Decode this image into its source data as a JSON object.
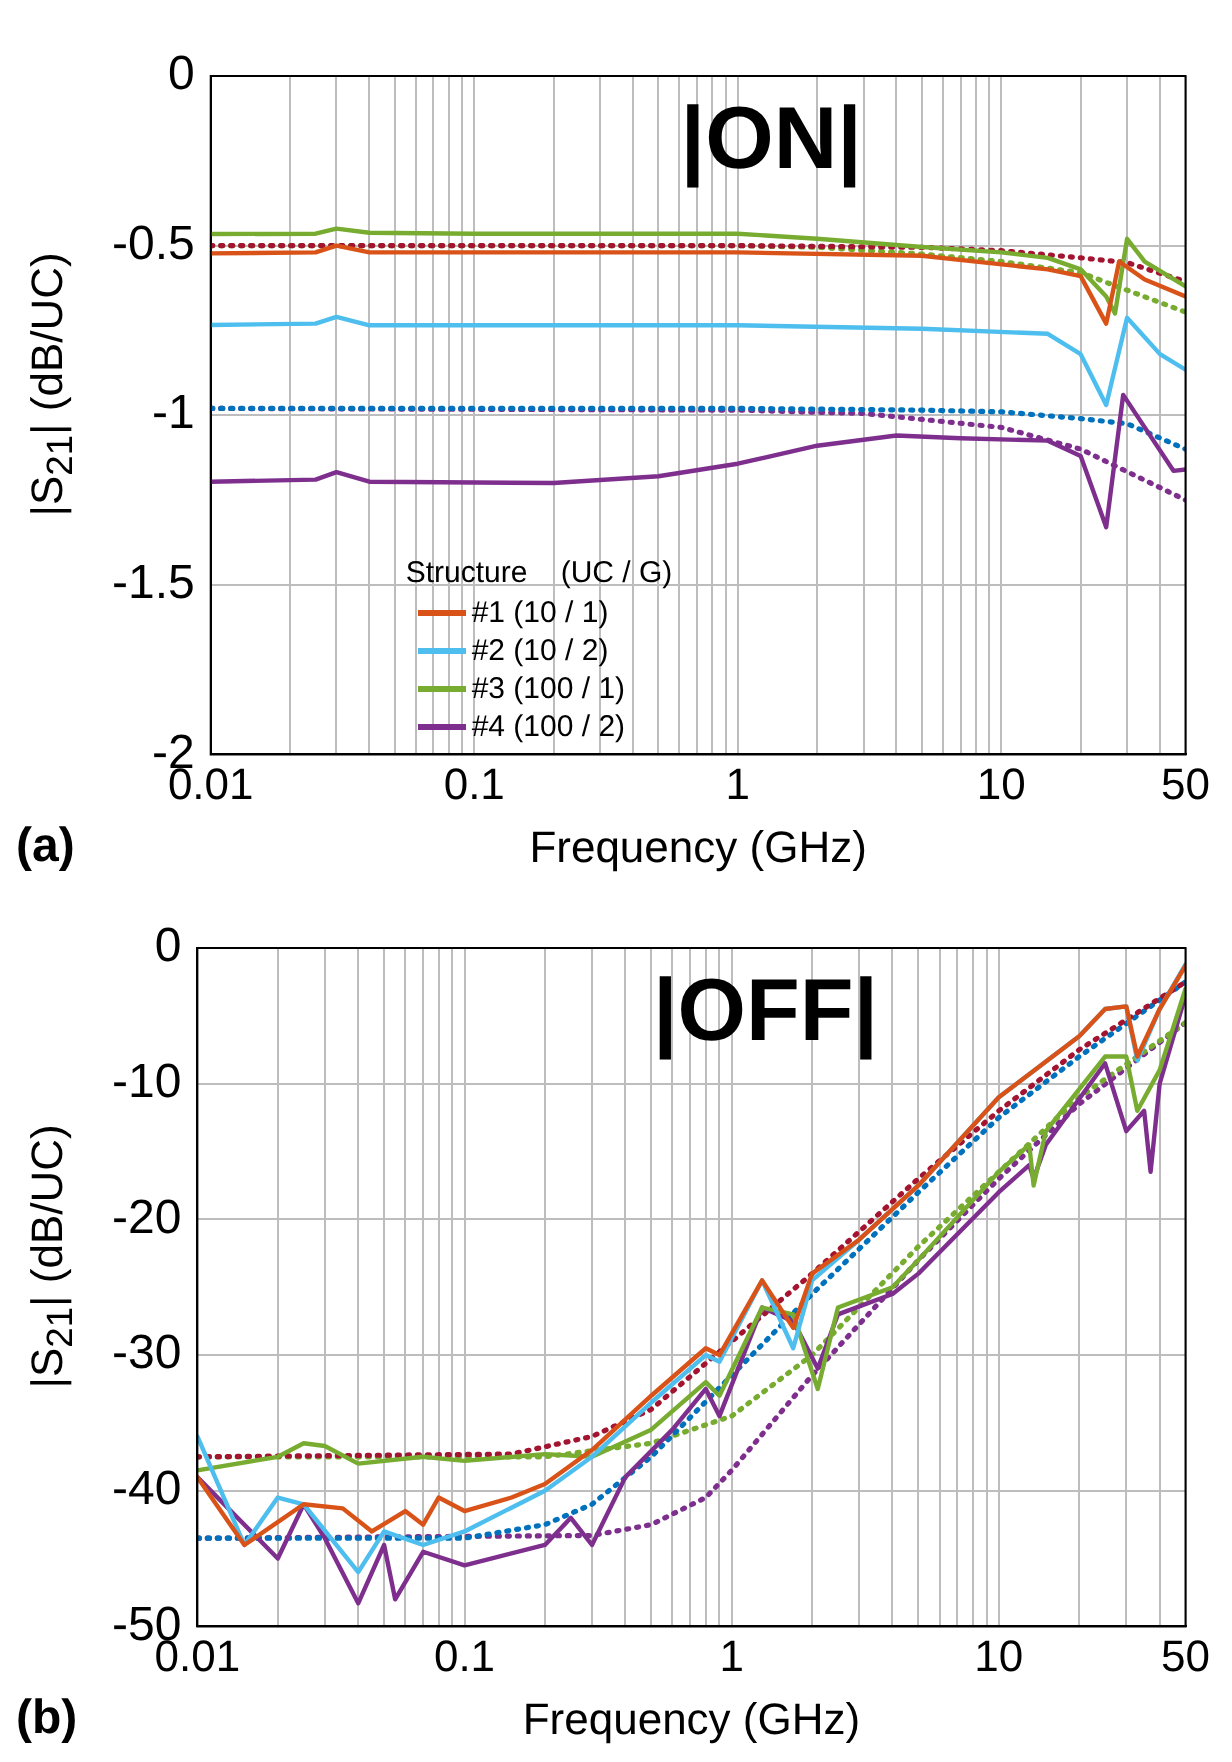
{
  "chart_data": [
    {
      "type": "line",
      "annotations": [
        "|ON|",
        "(a)"
      ],
      "xlabel": "Frequency (GHz)",
      "ylabel": "|S$_{21}$| (dB/UC)",
      "log": "x",
      "grid": true,
      "legend": "bottom left",
      "legend_title": "Structure    (UC / G)",
      "marker": "none",
      "xlim": [
        0.01,
        50
      ],
      "ylim": [
        -2,
        0
      ],
      "xticks": [
        0.01,
        {
          "value": 0.02,
          "label": null
        },
        {
          "value": 0.03,
          "label": null
        },
        {
          "value": 0.04,
          "label": null
        },
        {
          "value": 0.05,
          "label": null
        },
        {
          "value": 0.06,
          "label": null
        },
        {
          "value": 0.07,
          "label": null
        },
        {
          "value": 0.08,
          "label": null
        },
        {
          "value": 0.09,
          "label": null
        },
        0.1,
        {
          "value": 0.2,
          "label": null
        },
        {
          "value": 0.3,
          "label": null
        },
        {
          "value": 0.4,
          "label": null
        },
        {
          "value": 0.5,
          "label": null
        },
        {
          "value": 0.6,
          "label": null
        },
        {
          "value": 0.7,
          "label": null
        },
        {
          "value": 0.8,
          "label": null
        },
        {
          "value": 0.9,
          "label": null
        },
        1,
        {
          "value": 2,
          "label": null
        },
        {
          "value": 3,
          "label": null
        },
        {
          "value": 4,
          "label": null
        },
        {
          "value": 5,
          "label": null
        },
        {
          "value": 6,
          "label": null
        },
        {
          "value": 7,
          "label": null
        },
        {
          "value": 8,
          "label": null
        },
        {
          "value": 9,
          "label": null
        },
        10,
        {
          "value": 20,
          "label": null
        },
        {
          "value": 30,
          "label": null
        },
        {
          "value": 40,
          "label": null
        },
        50
      ],
      "yticks": [
        0,
        -0.5,
        -1,
        -1.5,
        -2
      ],
      "series": [
        {
          "name": "#1 (10 / 1)",
          "color": "#d95319",
          "line_style": "solid",
          "x": [
            0.01,
            0.025,
            0.03,
            0.04,
            0.1,
            1,
            5,
            15,
            20,
            25,
            28,
            35,
            50
          ],
          "values": [
            -0.523,
            -0.52,
            -0.5,
            -0.52,
            -0.52,
            -0.52,
            -0.53,
            -0.57,
            -0.59,
            -0.73,
            -0.547,
            -0.6,
            -0.65
          ]
        },
        {
          "name": "#2 (10 / 2)",
          "color": "#4dbeee",
          "line_style": "solid",
          "x": [
            0.01,
            0.025,
            0.03,
            0.04,
            0.1,
            1,
            5,
            15,
            20,
            25,
            30,
            40,
            50
          ],
          "values": [
            -0.734,
            -0.73,
            -0.71,
            -0.735,
            -0.735,
            -0.735,
            -0.745,
            -0.76,
            -0.82,
            -0.97,
            -0.713,
            -0.82,
            -0.866
          ]
        },
        {
          "name": "#3 (100 / 1)",
          "color": "#77ac30",
          "line_style": "solid",
          "x": [
            0.01,
            0.025,
            0.03,
            0.04,
            0.1,
            1,
            2,
            5,
            10,
            15,
            20,
            25,
            27,
            30,
            35,
            50
          ],
          "values": [
            -0.466,
            -0.465,
            -0.45,
            -0.462,
            -0.465,
            -0.465,
            -0.48,
            -0.504,
            -0.52,
            -0.536,
            -0.57,
            -0.65,
            -0.7,
            -0.48,
            -0.547,
            -0.62
          ]
        },
        {
          "name": "#4 (100 / 2)",
          "color": "#7e2f8e",
          "line_style": "solid",
          "x": [
            0.01,
            0.025,
            0.03,
            0.04,
            0.2,
            0.5,
            1,
            2,
            4,
            7,
            15,
            20,
            25,
            29,
            35,
            45,
            50
          ],
          "values": [
            -1.196,
            -1.19,
            -1.168,
            -1.196,
            -1.2,
            -1.18,
            -1.143,
            -1.09,
            -1.06,
            -1.068,
            -1.075,
            -1.12,
            -1.33,
            -0.94,
            -1.036,
            -1.164,
            -1.16
          ]
        },
        {
          "color": "#a2142f",
          "line_style": "dotted",
          "x": [
            0.01,
            1,
            5,
            10,
            20,
            30,
            50
          ],
          "values": [
            -0.5,
            -0.5,
            -0.505,
            -0.515,
            -0.536,
            -0.55,
            -0.606
          ]
        },
        {
          "color": "#0072bd",
          "line_style": "dotted",
          "x": [
            0.01,
            1,
            5,
            10,
            20,
            30,
            50
          ],
          "values": [
            -0.98,
            -0.98,
            -0.985,
            -0.99,
            -1.01,
            -1.025,
            -1.1
          ]
        },
        {
          "color": "#77ac30",
          "line_style": "dotted",
          "x": [
            0.01,
            1,
            2,
            5,
            10,
            20,
            50
          ],
          "values": [
            -0.5,
            -0.5,
            -0.505,
            -0.525,
            -0.547,
            -0.58,
            -0.696
          ]
        },
        {
          "color": "#7e2f8e",
          "line_style": "dotted",
          "x": [
            0.01,
            1,
            3,
            10,
            20,
            50
          ],
          "values": [
            -0.98,
            -0.985,
            -0.995,
            -1.036,
            -1.1,
            -1.25
          ]
        }
      ]
    },
    {
      "type": "line",
      "annotations": [
        "|OFF|",
        "(b)"
      ],
      "xlabel": "Frequency (GHz)",
      "ylabel": "|S$_{21}$| (dB/UC)",
      "log": "x",
      "grid": true,
      "marker": "none",
      "xlim": [
        0.01,
        50
      ],
      "ylim": [
        -50,
        0
      ],
      "xticks": [
        0.01,
        {
          "value": 0.02,
          "label": null
        },
        {
          "value": 0.03,
          "label": null
        },
        {
          "value": 0.04,
          "label": null
        },
        {
          "value": 0.05,
          "label": null
        },
        {
          "value": 0.06,
          "label": null
        },
        {
          "value": 0.07,
          "label": null
        },
        {
          "value": 0.08,
          "label": null
        },
        {
          "value": 0.09,
          "label": null
        },
        0.1,
        {
          "value": 0.2,
          "label": null
        },
        {
          "value": 0.3,
          "label": null
        },
        {
          "value": 0.4,
          "label": null
        },
        {
          "value": 0.5,
          "label": null
        },
        {
          "value": 0.6,
          "label": null
        },
        {
          "value": 0.7,
          "label": null
        },
        {
          "value": 0.8,
          "label": null
        },
        {
          "value": 0.9,
          "label": null
        },
        1,
        {
          "value": 2,
          "label": null
        },
        {
          "value": 3,
          "label": null
        },
        {
          "value": 4,
          "label": null
        },
        {
          "value": 5,
          "label": null
        },
        {
          "value": 6,
          "label": null
        },
        {
          "value": 7,
          "label": null
        },
        {
          "value": 8,
          "label": null
        },
        {
          "value": 9,
          "label": null
        },
        10,
        {
          "value": 20,
          "label": null
        },
        {
          "value": 30,
          "label": null
        },
        {
          "value": 40,
          "label": null
        },
        50
      ],
      "yticks": [
        0,
        -10,
        -20,
        -30,
        -40,
        -50
      ],
      "series": [
        {
          "color": "#d95319",
          "line_style": "solid",
          "x": [
            0.01,
            0.015,
            0.025,
            0.035,
            0.045,
            0.06,
            0.07,
            0.08,
            0.1,
            0.15,
            0.2,
            0.3,
            0.5,
            0.8,
            0.9,
            1.3,
            1.7,
            2,
            3,
            5,
            10,
            20,
            25,
            30,
            33,
            40,
            50
          ],
          "values": [
            -39,
            -44,
            -41,
            -41.3,
            -43,
            -41.5,
            -42.5,
            -40.5,
            -41.5,
            -40.5,
            -39.5,
            -37,
            -33,
            -29.5,
            -30,
            -24.5,
            -28,
            -24,
            -21.5,
            -17.5,
            -11,
            -6.5,
            -4.5,
            -4.3,
            -8,
            -4.5,
            -1.3
          ]
        },
        {
          "color": "#4dbeee",
          "line_style": "solid",
          "x": [
            0.01,
            0.015,
            0.02,
            0.025,
            0.04,
            0.05,
            0.07,
            0.1,
            0.2,
            0.3,
            0.5,
            0.8,
            0.9,
            1.3,
            1.7,
            2,
            3,
            5,
            10,
            20,
            25,
            30,
            33,
            40,
            50
          ],
          "values": [
            -36,
            -44,
            -40.5,
            -41,
            -46,
            -43,
            -44,
            -43,
            -40,
            -37.5,
            -33.5,
            -30,
            -30.5,
            -24.5,
            -29.5,
            -24.5,
            -21.5,
            -17.5,
            -11,
            -6.5,
            -4.5,
            -4.3,
            -8.3,
            -4.5,
            -1.2
          ]
        },
        {
          "color": "#77ac30",
          "line_style": "solid",
          "x": [
            0.01,
            0.02,
            0.025,
            0.03,
            0.04,
            0.07,
            0.1,
            0.2,
            0.3,
            0.5,
            0.8,
            0.9,
            1.3,
            1.7,
            2.1,
            2.5,
            4,
            5,
            10,
            13,
            13.5,
            15,
            25,
            30,
            33,
            40,
            50
          ],
          "values": [
            -38.5,
            -37.5,
            -36.5,
            -36.7,
            -38,
            -37.5,
            -37.8,
            -37.3,
            -37.5,
            -35.5,
            -32,
            -33,
            -26.5,
            -27,
            -32.5,
            -26.5,
            -25,
            -23,
            -16.5,
            -14.5,
            -17.5,
            -13.5,
            -8,
            -8,
            -12,
            -9,
            -3
          ]
        },
        {
          "color": "#7e2f8e",
          "line_style": "solid",
          "x": [
            0.01,
            0.02,
            0.025,
            0.03,
            0.04,
            0.05,
            0.055,
            0.07,
            0.1,
            0.2,
            0.25,
            0.3,
            0.4,
            0.6,
            0.8,
            0.9,
            1.3,
            1.7,
            2.1,
            2.5,
            4,
            5,
            10,
            13,
            13.5,
            15,
            25,
            30,
            35,
            37,
            40,
            50
          ],
          "values": [
            -39,
            -45,
            -41,
            -43.5,
            -48.3,
            -44,
            -48,
            -44.5,
            -45.5,
            -44,
            -42,
            -44,
            -39,
            -35.5,
            -32.5,
            -34.5,
            -26.5,
            -27.5,
            -31,
            -27,
            -25.5,
            -24,
            -18,
            -16,
            -17,
            -14.5,
            -8.5,
            -13.5,
            -12,
            -16.5,
            -10,
            -3.5
          ]
        },
        {
          "color": "#a2142f",
          "line_style": "dotted",
          "x": [
            0.01,
            0.15,
            0.3,
            0.5,
            1,
            2,
            5,
            10,
            20,
            50
          ],
          "values": [
            -37.5,
            -37.3,
            -36,
            -34,
            -29,
            -24,
            -17,
            -12,
            -7.5,
            -2.5
          ]
        },
        {
          "color": "#0072bd",
          "line_style": "dotted",
          "x": [
            0.01,
            0.1,
            0.2,
            0.3,
            0.5,
            1,
            2,
            5,
            10,
            20,
            50
          ],
          "values": [
            -43.5,
            -43.5,
            -42.5,
            -41,
            -37.5,
            -31.5,
            -25.5,
            -18,
            -12.5,
            -8,
            -2.5
          ]
        },
        {
          "color": "#77ac30",
          "line_style": "dotted",
          "x": [
            0.01,
            0.2,
            0.5,
            1,
            2,
            5,
            10,
            20,
            50
          ],
          "values": [
            -37.5,
            -37.5,
            -36.5,
            -34.5,
            -30,
            -22,
            -16.5,
            -11,
            -5.5
          ]
        },
        {
          "color": "#7e2f8e",
          "line_style": "dotted",
          "x": [
            0.01,
            0.3,
            0.5,
            0.8,
            1,
            2,
            5,
            10,
            20,
            50
          ],
          "values": [
            -43.5,
            -43.3,
            -42.5,
            -40.5,
            -38.5,
            -31.5,
            -23,
            -17,
            -11.5,
            -5.5
          ]
        }
      ]
    }
  ]
}
